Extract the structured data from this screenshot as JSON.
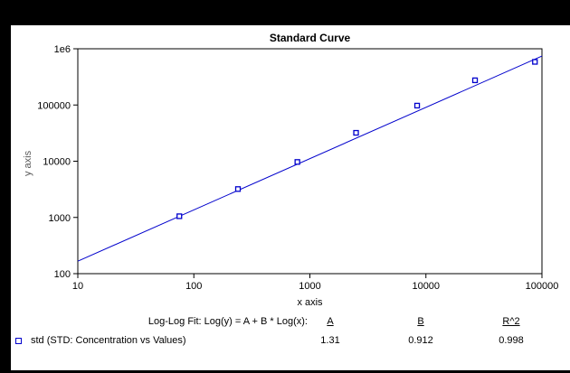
{
  "colors": {
    "accent": "#0000CC",
    "text": "#000000",
    "axis_label": "#595959",
    "frame": "#000000",
    "panel": "#ffffff"
  },
  "chart_data": {
    "type": "scatter",
    "title": "Standard Curve",
    "xlabel": "x axis",
    "ylabel": "y axis",
    "x_scale": "log",
    "y_scale": "log",
    "xlim": [
      10,
      100000
    ],
    "ylim": [
      100,
      1000000
    ],
    "grid": false,
    "x_ticks": [
      10,
      100,
      1000,
      10000,
      100000
    ],
    "x_tick_labels": [
      "10",
      "100",
      "1000",
      "10000",
      "100000"
    ],
    "y_ticks": [
      1000000,
      100000,
      10000,
      1000,
      100
    ],
    "y_tick_labels": [
      "1e6",
      "100000",
      "10000",
      "1000",
      "100"
    ],
    "series": [
      {
        "name": "std (STD: Concentration vs Values)",
        "marker": "open-square",
        "color": "#0000CC",
        "x": [
          75,
          240,
          780,
          2500,
          8400,
          26500,
          87000
        ],
        "y": [
          1050,
          3200,
          9700,
          32000,
          97500,
          275000,
          585000
        ]
      }
    ],
    "fit": {
      "model": "Log(y) = A + B * Log(x)",
      "A": 1.31,
      "B": 0.912,
      "R2": 0.998,
      "x_range": [
        10,
        100000
      ]
    },
    "legend_position": "bottom-left"
  },
  "fit_table": {
    "equation_label": "Log-Log Fit: Log(y) = A + B * Log(x):",
    "col_a": "A",
    "col_b": "B",
    "col_r2": "R^2",
    "a_value": "1.31",
    "b_value": "0.912",
    "r2_value": "0.998",
    "series_label": "std (STD: Concentration vs Values)"
  }
}
